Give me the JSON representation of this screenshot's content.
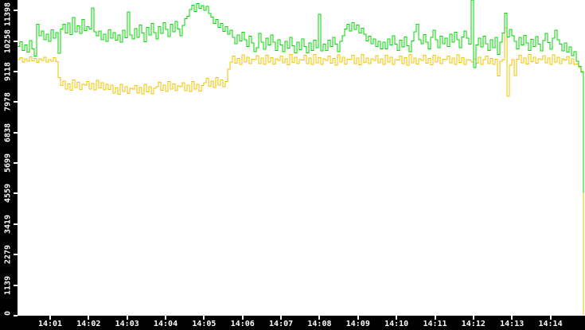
{
  "chart": {
    "background_color": "#ffffff",
    "axis_strip_color": "#000000",
    "tick_color": "#ffffff",
    "label_color": "#ffffff"
  },
  "chart_data": {
    "type": "line",
    "title": "",
    "xlabel": "",
    "ylabel": "",
    "grid": false,
    "legend": "none",
    "ylim": [
      0,
      11791
    ],
    "y_ticks": [
      {
        "label": "0",
        "value": 0
      },
      {
        "label": "1139",
        "value": 1139
      },
      {
        "label": "2279",
        "value": 2279
      },
      {
        "label": "3419",
        "value": 3419
      },
      {
        "label": "4559",
        "value": 4559
      },
      {
        "label": "5699",
        "value": 5699
      },
      {
        "label": "6838",
        "value": 6838
      },
      {
        "label": "7978",
        "value": 7978
      },
      {
        "label": "9118",
        "value": 9118
      },
      {
        "label": "10258",
        "value": 10258
      },
      {
        "label": "11398",
        "value": 11398
      }
    ],
    "x_tick_labels": [
      "14:01",
      "14:02",
      "14:03",
      "14:04",
      "14:05",
      "14:06",
      "14:07",
      "14:08",
      "14:09",
      "14:10",
      "14:11",
      "14:12",
      "14:13",
      "14:14"
    ],
    "series": [
      {
        "name": "yellow-series",
        "color": "#f0c400",
        "values": [
          9560,
          9640,
          9470,
          9600,
          9510,
          9670,
          9520,
          9610,
          9460,
          9590,
          9530,
          9660,
          9480,
          9570,
          9500,
          9640,
          9490,
          8900,
          8600,
          8760,
          8470,
          8660,
          8420,
          8800,
          8520,
          8710,
          8450,
          8640,
          8610,
          8750,
          8460,
          8670,
          8430,
          8790,
          8510,
          8700,
          8440,
          8650,
          8450,
          8610,
          8320,
          8510,
          8270,
          8650,
          8370,
          8560,
          8300,
          8490,
          8460,
          8600,
          8310,
          8520,
          8280,
          8640,
          8360,
          8550,
          8290,
          8500,
          8550,
          8710,
          8420,
          8610,
          8370,
          8750,
          8470,
          8660,
          8400,
          8590,
          8560,
          8700,
          8410,
          8620,
          8380,
          8740,
          8460,
          8650,
          8390,
          8600,
          8700,
          8860,
          8570,
          8760,
          8520,
          8900,
          8620,
          8810,
          8550,
          8740,
          9200,
          9480,
          9700,
          9430,
          9610,
          9380,
          9740,
          9480,
          9650,
          9410,
          9580,
          9560,
          9710,
          9420,
          9620,
          9390,
          9730,
          9470,
          9640,
          9400,
          9590,
          9540,
          9690,
          9440,
          9600,
          9370,
          9750,
          9460,
          9660,
          9420,
          9570,
          9550,
          9720,
          9410,
          9630,
          9380,
          9760,
          9450,
          9640,
          9390,
          9600,
          9530,
          9700,
          9430,
          9610,
          9360,
          9740,
          9480,
          9650,
          9400,
          9580,
          9560,
          9730,
          9420,
          9620,
          9370,
          9750,
          9460,
          9630,
          9410,
          9590,
          9540,
          9710,
          9440,
          9600,
          9380,
          9720,
          9470,
          9660,
          9390,
          9570,
          9550,
          9700,
          9410,
          9640,
          9360,
          9760,
          9450,
          9620,
          9400,
          9600,
          9530,
          9720,
          9430,
          9610,
          9370,
          9730,
          9480,
          9650,
          9420,
          9580,
          9560,
          9690,
          9440,
          9630,
          9380,
          9740,
          9460,
          9640,
          9390,
          9570,
          9550,
          9480,
          9600,
          9430,
          9650,
          9380,
          9560,
          9700,
          9420,
          9610,
          9390,
          9580,
          8950,
          9500,
          9560,
          10750,
          8200,
          9350,
          9560,
          8970,
          9580,
          9720,
          9450,
          9630,
          9400,
          9760,
          9490,
          9660,
          9430,
          9600,
          9570,
          9710,
          9440,
          9620,
          9390,
          9740,
          9470,
          9650,
          9410,
          9590,
          9550,
          9680,
          9420,
          9600,
          9380,
          9400,
          9260,
          9120,
          30
        ]
      },
      {
        "name": "green-series",
        "color": "#00d800",
        "values": [
          10050,
          10230,
          9910,
          10120,
          9850,
          10280,
          9960,
          9700,
          10890,
          10450,
          10630,
          10310,
          10520,
          10250,
          10680,
          10360,
          10570,
          9800,
          10700,
          10880,
          10560,
          10930,
          10500,
          11140,
          10610,
          10820,
          10540,
          11060,
          10650,
          10790,
          10700,
          11500,
          10600,
          10450,
          10630,
          10310,
          10520,
          10250,
          10680,
          10360,
          10570,
          10290,
          10490,
          10210,
          10660,
          10380,
          11350,
          10480,
          10340,
          10720,
          10400,
          10860,
          10560,
          10230,
          10760,
          10490,
          10910,
          10580,
          10330,
          10790,
          10540,
          10950,
          10690,
          10420,
          10880,
          10600,
          10990,
          10710,
          10460,
          10840,
          11090,
          11180,
          11440,
          11600,
          11360,
          11650,
          11480,
          11590,
          11410,
          11560,
          11290,
          11150,
          10920,
          11060,
          10760,
          10910,
          10620,
          10790,
          10510,
          10660,
          10400,
          10160,
          10490,
          10260,
          10590,
          10310,
          10060,
          10440,
          10190,
          9860,
          10010,
          10540,
          10210,
          9950,
          10360,
          10110,
          10490,
          10220,
          9910,
          10310,
          10110,
          9860,
          10240,
          10000,
          10390,
          10090,
          9810,
          10210,
          9940,
          10340,
          10060,
          9810,
          10190,
          9900,
          10290,
          10010,
          11250,
          9890,
          10140,
          9900,
          10290,
          10060,
          10390,
          10140,
          9860,
          10240,
          10460,
          10710,
          10890,
          10640,
          10940,
          10690,
          10860,
          10560,
          10740,
          10510,
          10260,
          10440,
          10160,
          10340,
          10060,
          10240,
          9960,
          10210,
          9960,
          10340,
          10110,
          10460,
          10140,
          9910,
          10290,
          10040,
          10410,
          10090,
          9860,
          10260,
          10610,
          10890,
          10310,
          10160,
          10500,
          10210,
          9960,
          10390,
          10660,
          10300,
          10010,
          10440,
          10160,
          10360,
          10060,
          10510,
          10220,
          10590,
          10310,
          10010,
          10410,
          10640,
          10360,
          10150,
          11790,
          9270,
          10120,
          10360,
          10040,
          10440,
          10160,
          9910,
          10310,
          10010,
          10390,
          9760,
          10210,
          10560,
          11300,
          10410,
          10690,
          10460,
          10240,
          9960,
          10390,
          10110,
          10470,
          10190,
          9910,
          10320,
          10060,
          10430,
          10140,
          9890,
          10280,
          10540,
          10200,
          9950,
          10360,
          10660,
          10310,
          10140,
          9890,
          10190,
          9840,
          10040,
          9710,
          9860,
          9500,
          9310,
          9110,
          4570
        ]
      }
    ]
  }
}
